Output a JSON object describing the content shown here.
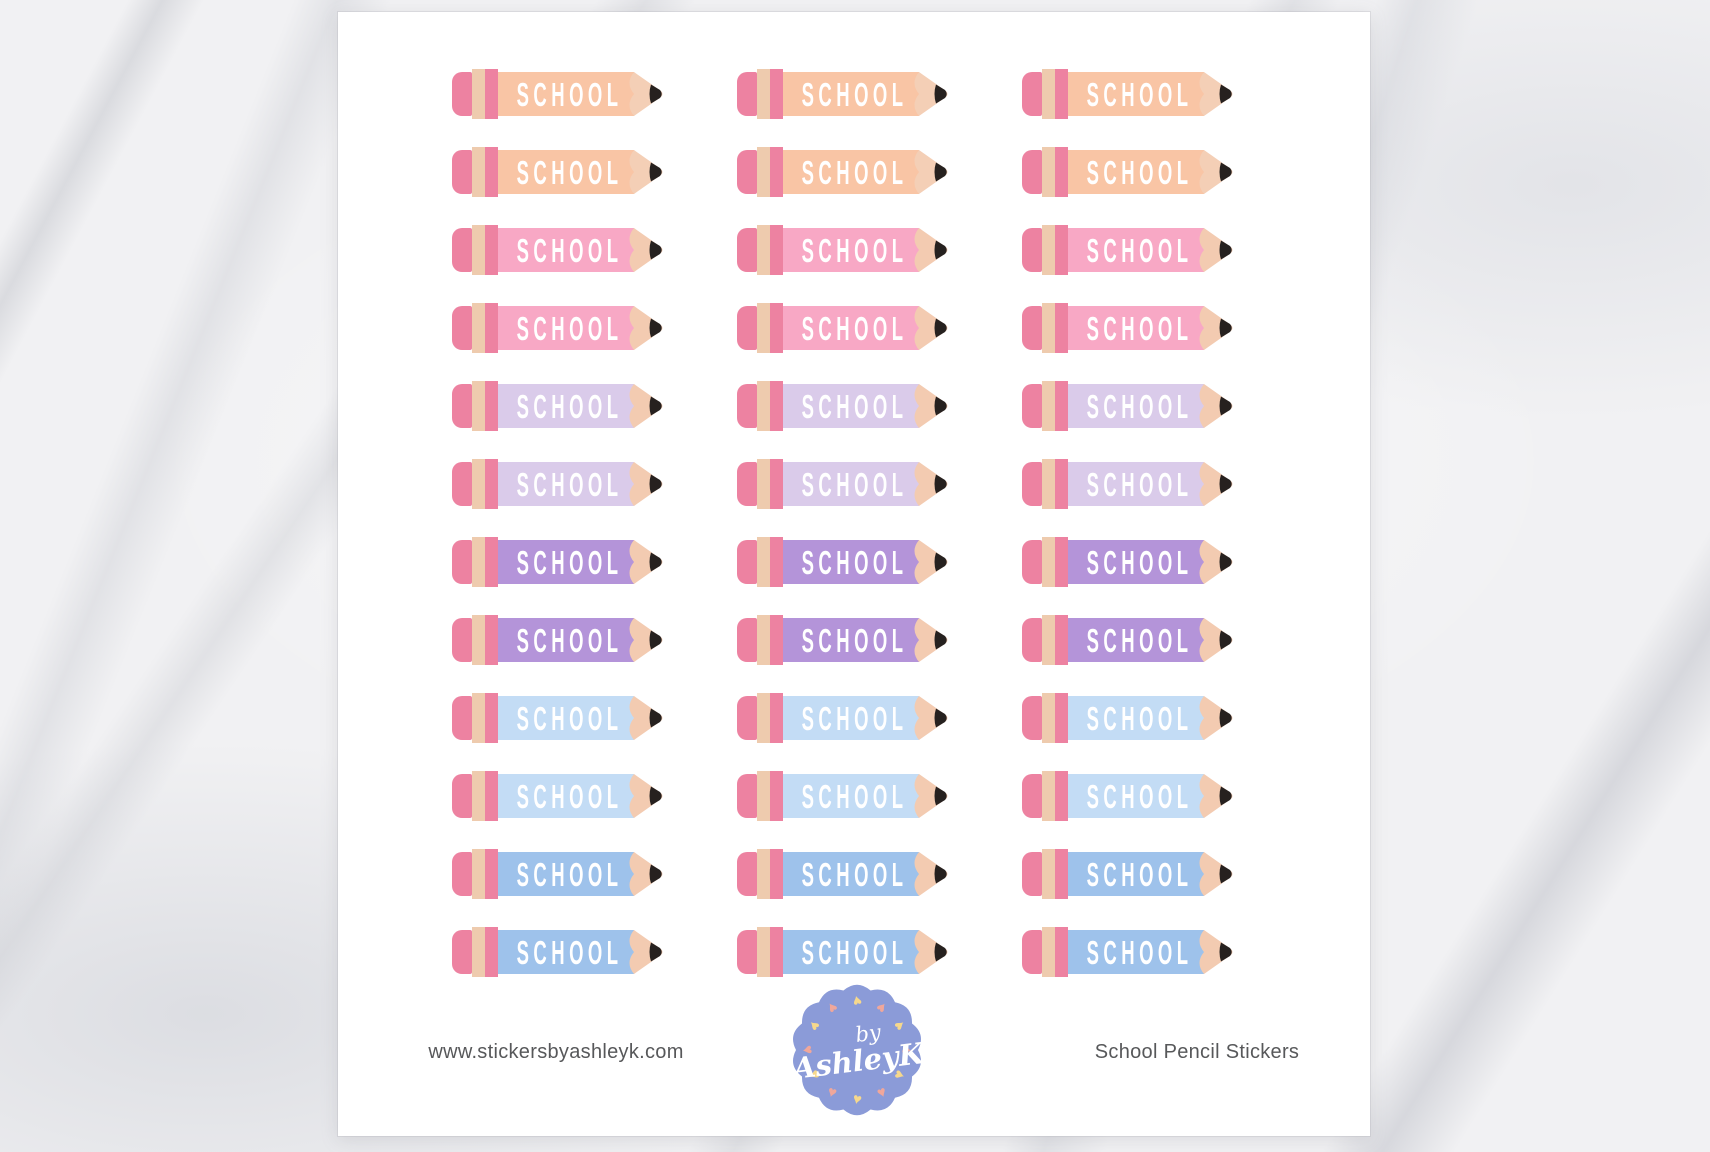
{
  "stickers": {
    "label": "SCHOOL",
    "columns": 3,
    "rows": [
      {
        "color_name": "peach",
        "body_color": "#F9C5A5",
        "wood_color": "#F4CFB6"
      },
      {
        "color_name": "peach",
        "body_color": "#F9C5A5",
        "wood_color": "#F4CFB6"
      },
      {
        "color_name": "pink",
        "body_color": "#F8A8C5",
        "wood_color": "#F3CBB1"
      },
      {
        "color_name": "pink",
        "body_color": "#F8A8C5",
        "wood_color": "#F3CBB1"
      },
      {
        "color_name": "lilac",
        "body_color": "#DACBEA",
        "wood_color": "#F3CBB1"
      },
      {
        "color_name": "lilac",
        "body_color": "#DACBEA",
        "wood_color": "#F3CBB1"
      },
      {
        "color_name": "purple",
        "body_color": "#B494D9",
        "wood_color": "#F3CBB1"
      },
      {
        "color_name": "purple",
        "body_color": "#B494D9",
        "wood_color": "#F3CBB1"
      },
      {
        "color_name": "pale-blue",
        "body_color": "#C3DCF5",
        "wood_color": "#F3CBB1"
      },
      {
        "color_name": "pale-blue",
        "body_color": "#C3DCF5",
        "wood_color": "#F3CBB1"
      },
      {
        "color_name": "blue",
        "body_color": "#9EC2EB",
        "wood_color": "#F3CBB1"
      },
      {
        "color_name": "blue",
        "body_color": "#9EC2EB",
        "wood_color": "#F3CBB1"
      }
    ],
    "shared": {
      "eraser_color": "#ED82A1",
      "ferrule_cream_color": "#EECBAE",
      "ferrule_pink_color": "#ED82A1",
      "lead_color": "#26211F",
      "label_color": "#FFFFFF"
    }
  },
  "footer": {
    "website": "www.stickersbyashleyk.com",
    "product_title": "School Pencil Stickers",
    "logo": {
      "line1": "by",
      "line2": "AshleyK",
      "badge_color": "#8B9BD8",
      "text_color": "#FFFFFF",
      "heart_glyph": "♥",
      "hearts": [
        {
          "angle": 270,
          "color": "#F6D88C",
          "jitter": -14
        },
        {
          "angle": 300,
          "color": "#F0A79B",
          "jitter": 10
        },
        {
          "angle": 330,
          "color": "#F6D88C",
          "jitter": -8
        },
        {
          "angle": 0,
          "color": "#F0A79B",
          "jitter": 12
        },
        {
          "angle": 30,
          "color": "#F6D88C",
          "jitter": -10
        },
        {
          "angle": 60,
          "color": "#F0A79B",
          "jitter": 8
        },
        {
          "angle": 90,
          "color": "#F6D88C",
          "jitter": 14
        },
        {
          "angle": 120,
          "color": "#F0A79B",
          "jitter": -12
        },
        {
          "angle": 150,
          "color": "#F6D88C",
          "jitter": 6
        },
        {
          "angle": 180,
          "color": "#F0A79B",
          "jitter": -10
        },
        {
          "angle": 210,
          "color": "#F6D88C",
          "jitter": 12
        },
        {
          "angle": 240,
          "color": "#F0A79B",
          "jitter": -6
        }
      ]
    }
  }
}
